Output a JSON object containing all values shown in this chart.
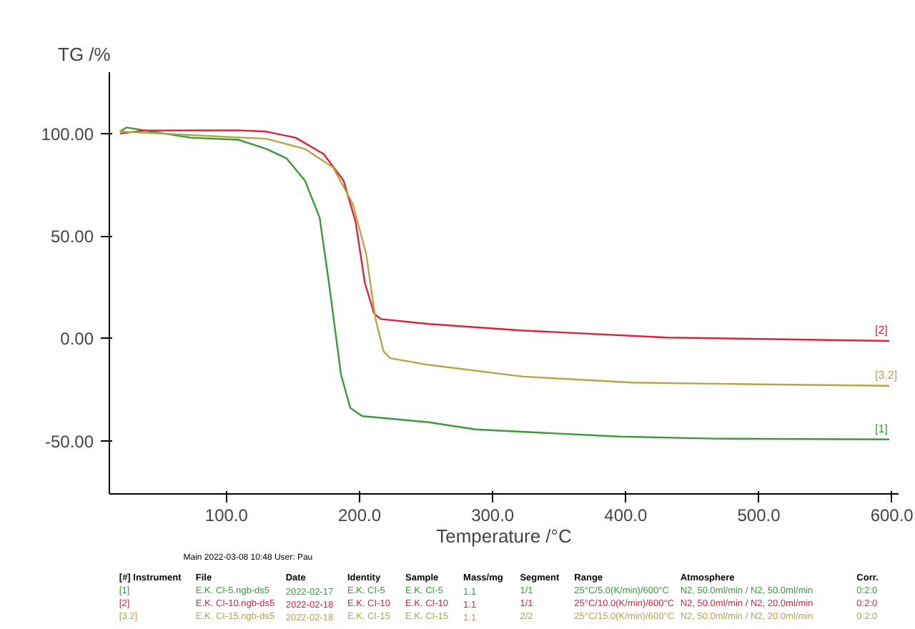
{
  "chart_data": {
    "type": "line",
    "xlabel": "Temperature /°C",
    "ylabel": "TG /%",
    "xlim": [
      12,
      605
    ],
    "ylim": [
      -76,
      130
    ],
    "xticks": [
      {
        "value": 100,
        "label": "100.0"
      },
      {
        "value": 200,
        "label": "200.0"
      },
      {
        "value": 300,
        "label": "300.0"
      },
      {
        "value": 400,
        "label": "400.0"
      },
      {
        "value": 500,
        "label": "500.0"
      },
      {
        "value": 600,
        "label": "600.0"
      }
    ],
    "yticks": [
      {
        "value": -50,
        "label": "-50.00"
      },
      {
        "value": 0,
        "label": "0.00"
      },
      {
        "value": 50,
        "label": "50.00"
      },
      {
        "value": 100,
        "label": "100.00"
      }
    ],
    "grid": false,
    "marker": "none",
    "line_style": "solid",
    "series": [
      {
        "name": "[1]",
        "color": "#3a9a3a",
        "x": [
          20,
          25,
          73,
          109,
          130,
          145,
          159,
          170,
          177,
          186,
          193,
          202,
          252,
          287,
          395,
          466,
          598
        ],
        "values": [
          101,
          103,
          98,
          97,
          92.5,
          88,
          77,
          59,
          27,
          -17.5,
          -34,
          -38,
          -41,
          -44.5,
          -48,
          -49,
          -49.4
        ]
      },
      {
        "name": "[2]",
        "color": "#e0203a",
        "x": [
          20,
          38,
          109,
          130,
          152,
          173,
          188,
          197,
          204,
          211,
          216,
          252,
          323,
          431,
          598
        ],
        "values": [
          100,
          101.5,
          101.6,
          101,
          98,
          90,
          77,
          57,
          27,
          12,
          9.4,
          7,
          3.8,
          0.4,
          -1.3
        ]
      },
      {
        "name": "[3.2]",
        "color": "#b5a642",
        "x": [
          20,
          73,
          130,
          159,
          180,
          195,
          205,
          212,
          218,
          223,
          252,
          323,
          405,
          502,
          598
        ],
        "values": [
          101,
          99.3,
          97.5,
          92.5,
          83.6,
          65.6,
          41,
          9.4,
          -6.3,
          -9.7,
          -13,
          -18.7,
          -21.6,
          -22.5,
          -23.2
        ]
      }
    ],
    "annotations": [
      "Main   2022-03-08 10:48   User: Pau",
      "[#] Instrument",
      "File",
      "Date",
      "Identity",
      "Sample",
      "Mass/mg",
      "Segment",
      "Range",
      "Atmosphere",
      "Corr.",
      "[1]",
      "E.K. CI-5.ngb-ds5",
      "2022-02-17",
      "E.K. CI-5",
      "E.K. CI-5",
      "1.1",
      "1/1",
      "25°C/5.0(K/min)/600°C",
      "N2, 50.0ml/min / N2, 50.0ml/min",
      "0:2:0",
      "[2]",
      "E.K. CI-10.ngb-ds5",
      "2022-02-18",
      "E.K. CI-10",
      "E.K. CI-10",
      "1.1",
      "1/1",
      "25°C/10.0(K/min)/600°C",
      "N2, 50.0ml/min / N2, 20.0ml/min",
      "0:2:0",
      "[3.2]",
      "E.K. CI-15.ngb-ds5",
      "2022-02-18",
      "E.K. CI-15",
      "E.K. CI-15",
      "1.1",
      "2/2",
      "25°C/15.0(K/min)/600°C",
      "N2, 50.0ml/min / N2, 20.0ml/min",
      "0:2:0"
    ]
  }
}
